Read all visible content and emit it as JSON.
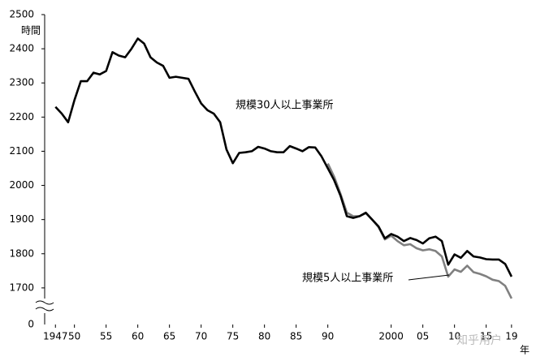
{
  "chart_data": {
    "type": "line",
    "y_label": "時間",
    "x_label": "年",
    "x": [
      1947,
      1948,
      1949,
      1950,
      1951,
      1952,
      1953,
      1954,
      1955,
      1956,
      1957,
      1958,
      1959,
      1960,
      1961,
      1962,
      1963,
      1964,
      1965,
      1966,
      1967,
      1968,
      1969,
      1970,
      1971,
      1972,
      1973,
      1974,
      1975,
      1976,
      1977,
      1978,
      1979,
      1980,
      1981,
      1982,
      1983,
      1984,
      1985,
      1986,
      1987,
      1988,
      1989,
      1990,
      1991,
      1992,
      1993,
      1994,
      1995,
      1996,
      1997,
      1998,
      1999,
      2000,
      2001,
      2002,
      2003,
      2004,
      2005,
      2006,
      2007,
      2008,
      2009,
      2010,
      2011,
      2012,
      2013,
      2014,
      2015,
      2016,
      2017,
      2018,
      2019
    ],
    "series": [
      {
        "name": "規模30人以上事業所",
        "color": "#000000",
        "values": [
          2230,
          2210,
          2185,
          2250,
          2305,
          2305,
          2330,
          2325,
          2335,
          2390,
          2380,
          2375,
          2400,
          2430,
          2415,
          2375,
          2360,
          2350,
          2315,
          2318,
          2315,
          2312,
          2275,
          2240,
          2220,
          2210,
          2185,
          2105,
          2065,
          2095,
          2097,
          2100,
          2113,
          2108,
          2100,
          2097,
          2097,
          2115,
          2108,
          2100,
          2112,
          2111,
          2085,
          2050,
          2015,
          1970,
          1910,
          1905,
          1910,
          1920,
          1900,
          1880,
          1845,
          1858,
          1850,
          1837,
          1846,
          1840,
          1830,
          1845,
          1850,
          1837,
          1768,
          1798,
          1788,
          1808,
          1792,
          1789,
          1784,
          1783,
          1783,
          1770,
          1733
        ]
      },
      {
        "name": "規模5人以上事業所",
        "color": "#808080",
        "values": [
          null,
          null,
          null,
          null,
          null,
          null,
          null,
          null,
          null,
          null,
          null,
          null,
          null,
          null,
          null,
          null,
          null,
          null,
          null,
          null,
          null,
          null,
          null,
          null,
          null,
          null,
          null,
          null,
          null,
          null,
          null,
          null,
          null,
          null,
          null,
          null,
          null,
          null,
          null,
          null,
          null,
          null,
          null,
          2064,
          2025,
          1975,
          1920,
          1910,
          1910,
          1919,
          1900,
          1878,
          1842,
          1853,
          1837,
          1825,
          1828,
          1816,
          1810,
          1813,
          1808,
          1792,
          1733,
          1754,
          1747,
          1765,
          1746,
          1741,
          1734,
          1724,
          1720,
          1706,
          1669
        ]
      }
    ],
    "xlim": [
      1945.3,
      2020.3
    ],
    "xticks": [
      {
        "value": 1947,
        "label": "1947"
      },
      {
        "value": 1950,
        "label": "50"
      },
      {
        "value": 1955,
        "label": "55"
      },
      {
        "value": 1960,
        "label": "60"
      },
      {
        "value": 1965,
        "label": "65"
      },
      {
        "value": 1970,
        "label": "70"
      },
      {
        "value": 1975,
        "label": "75"
      },
      {
        "value": 1980,
        "label": "80"
      },
      {
        "value": 1985,
        "label": "85"
      },
      {
        "value": 1990,
        "label": "90"
      },
      2000,
      {
        "value": 2005,
        "label": "05"
      },
      {
        "value": 2010,
        "label": "10"
      },
      {
        "value": 2015,
        "label": "15"
      },
      {
        "value": 2019,
        "label": "19"
      }
    ],
    "ylim": [
      1600,
      2500
    ],
    "yticks": [
      1700,
      1800,
      1900,
      2000,
      2100,
      2200,
      2300,
      2400,
      2500
    ],
    "y_break": {
      "value": 0,
      "label": "0"
    },
    "watermark": "知乎用户"
  }
}
